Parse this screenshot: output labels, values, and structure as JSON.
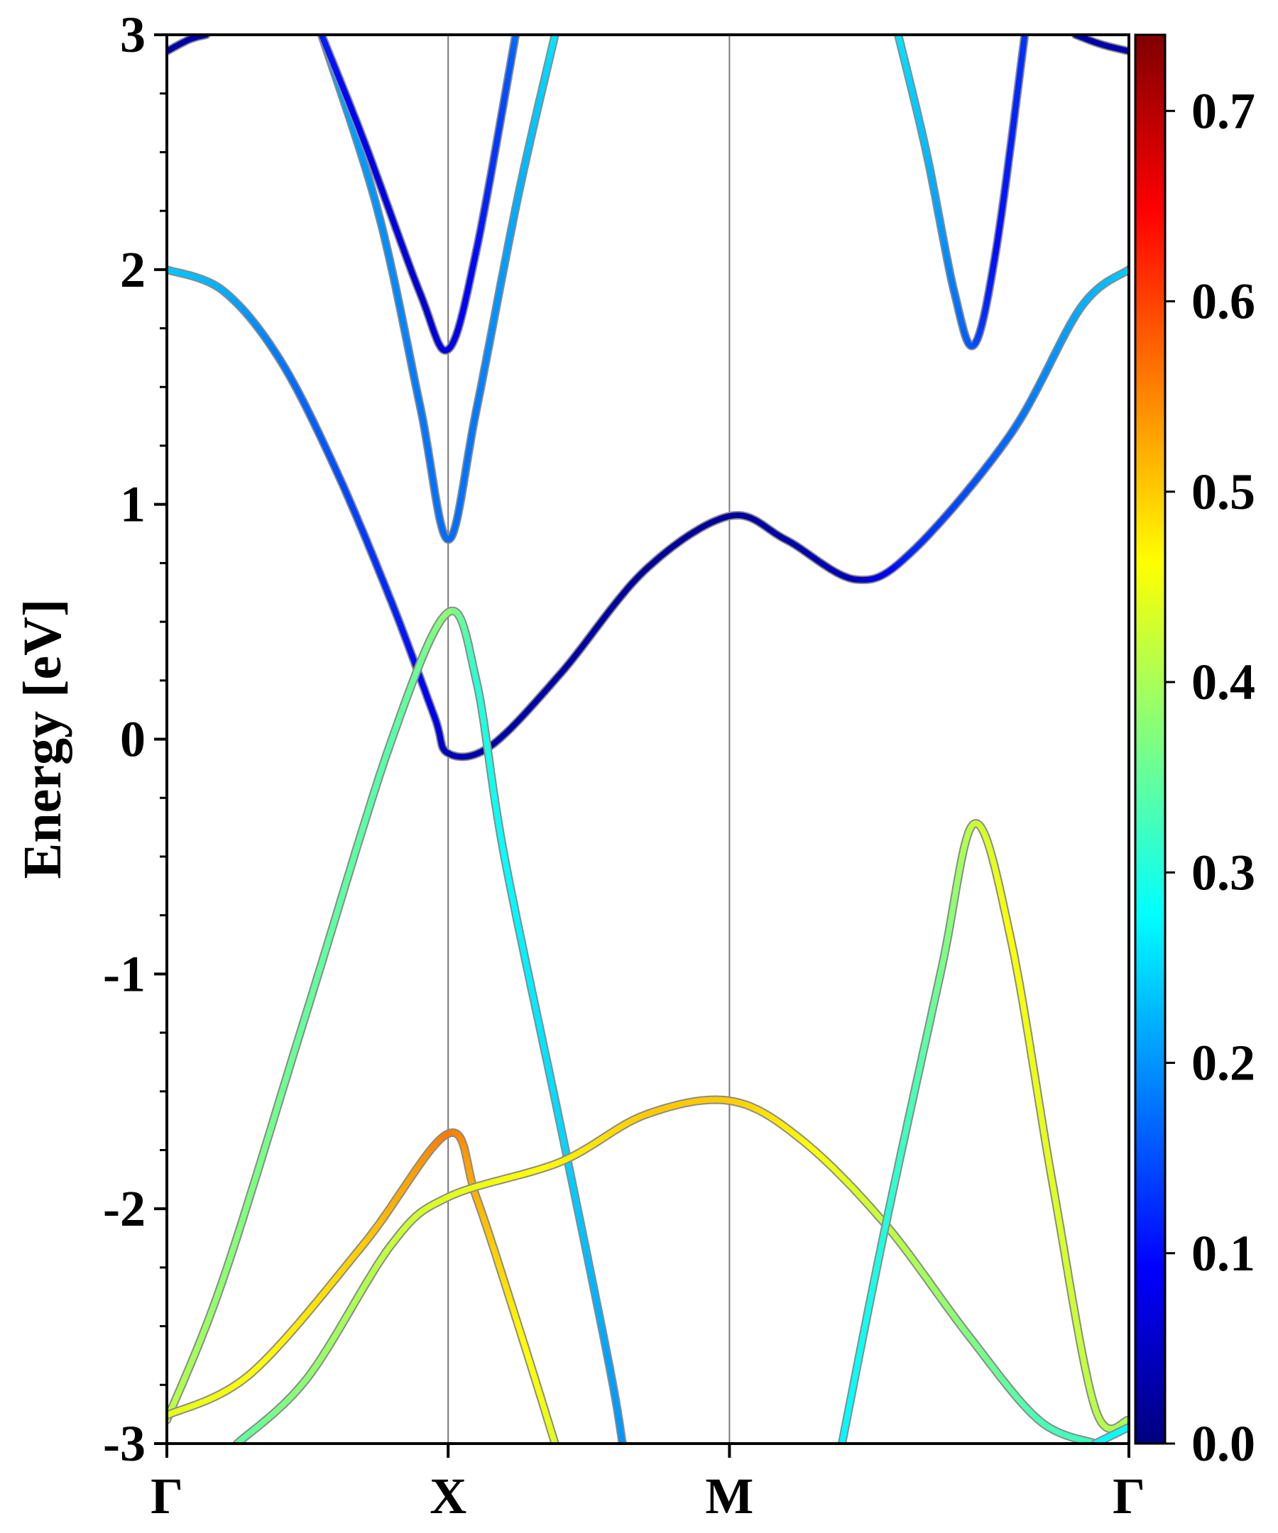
{
  "chart_data": {
    "type": "line",
    "title": "",
    "xlabel": "",
    "ylabel": "Energy [eV]",
    "ylim": [
      -3,
      3
    ],
    "yticks": [
      "3",
      "2",
      "1",
      "0",
      "-1",
      "-2",
      "-3"
    ],
    "xticks": [
      "Γ",
      "X",
      "M",
      "Γ"
    ],
    "colorbar": {
      "range": [
        0.0,
        0.74
      ],
      "ticks": [
        "0.7",
        "0.6",
        "0.5",
        "0.4",
        "0.3",
        "0.2",
        "0.1",
        "0.0"
      ],
      "colormap": "jet"
    },
    "high_symmetry_positions": [
      0,
      1,
      2,
      3.42
    ],
    "series": [
      {
        "points": [
          [
            0,
            2.0
          ],
          [
            0.2,
            1.91
          ],
          [
            0.4,
            1.62
          ],
          [
            0.6,
            1.15
          ],
          [
            0.8,
            0.58
          ],
          [
            0.95,
            0.1
          ],
          [
            1.0,
            -0.06
          ],
          [
            1.15,
            -0.03
          ],
          [
            1.4,
            0.28
          ],
          [
            1.7,
            0.72
          ],
          [
            2.0,
            0.95
          ],
          [
            2.2,
            0.85
          ],
          [
            2.45,
            0.68
          ],
          [
            2.65,
            0.8
          ],
          [
            3.0,
            1.3
          ],
          [
            3.25,
            1.84
          ],
          [
            3.42,
            2.0
          ]
        ],
        "weights": [
          0.24,
          0.22,
          0.18,
          0.15,
          0.12,
          0.08,
          0.04,
          0.03,
          0.03,
          0.02,
          0.02,
          0.03,
          0.04,
          0.12,
          0.17,
          0.22,
          0.24
        ]
      },
      {
        "points": [
          [
            0.55,
            3.0
          ],
          [
            0.75,
            2.25
          ],
          [
            0.9,
            1.42
          ],
          [
            1.0,
            0.85
          ],
          [
            1.1,
            1.4
          ],
          [
            1.25,
            2.32
          ],
          [
            1.38,
            3.0
          ]
        ],
        "weights": [
          0.22,
          0.2,
          0.18,
          0.17,
          0.18,
          0.22,
          0.26
        ]
      },
      {
        "points": [
          [
            0.55,
            3.0
          ],
          [
            0.7,
            2.55
          ],
          [
            0.9,
            1.9
          ],
          [
            1.0,
            1.66
          ],
          [
            1.1,
            2.08
          ],
          [
            1.24,
            3.0
          ]
        ],
        "weights": [
          0.12,
          0.08,
          0.06,
          0.07,
          0.1,
          0.17
        ]
      },
      {
        "points": [
          [
            2.6,
            3.0
          ],
          [
            2.7,
            2.5
          ],
          [
            2.8,
            1.9
          ],
          [
            2.87,
            1.68
          ],
          [
            2.95,
            2.1
          ],
          [
            3.05,
            3.0
          ]
        ],
        "weights": [
          0.26,
          0.23,
          0.18,
          0.15,
          0.1,
          0.13
        ]
      },
      {
        "points": [
          [
            0,
            -2.9
          ],
          [
            0.2,
            -2.3
          ],
          [
            0.5,
            -1.15
          ],
          [
            0.8,
            0.0
          ],
          [
            1.0,
            0.54
          ],
          [
            1.1,
            0.25
          ],
          [
            1.2,
            -0.5
          ],
          [
            1.4,
            -1.65
          ],
          [
            1.57,
            -2.65
          ],
          [
            1.62,
            -3.0
          ]
        ],
        "weights": [
          0.42,
          0.38,
          0.35,
          0.34,
          0.38,
          0.31,
          0.28,
          0.25,
          0.21,
          0.2
        ]
      },
      {
        "points": [
          [
            0,
            -2.88
          ],
          [
            0.3,
            -2.7
          ],
          [
            0.7,
            -2.15
          ],
          [
            1.0,
            -1.68
          ],
          [
            1.1,
            -1.95
          ],
          [
            1.25,
            -2.5
          ],
          [
            1.38,
            -3.0
          ]
        ],
        "weights": [
          0.44,
          0.46,
          0.5,
          0.56,
          0.52,
          0.47,
          0.44
        ]
      },
      {
        "points": [
          [
            0.25,
            -3.0
          ],
          [
            0.5,
            -2.72
          ],
          [
            0.8,
            -2.15
          ],
          [
            1.0,
            -1.95
          ],
          [
            1.4,
            -1.8
          ],
          [
            1.7,
            -1.6
          ],
          [
            2.0,
            -1.54
          ],
          [
            2.25,
            -1.7
          ],
          [
            2.55,
            -2.06
          ],
          [
            2.85,
            -2.54
          ],
          [
            3.1,
            -2.9
          ],
          [
            3.3,
            -3.0
          ]
        ],
        "weights": [
          0.34,
          0.38,
          0.42,
          0.44,
          0.47,
          0.5,
          0.5,
          0.47,
          0.42,
          0.37,
          0.33,
          0.32
        ]
      },
      {
        "points": [
          [
            2.4,
            -3.0
          ],
          [
            2.55,
            -2.1
          ],
          [
            2.75,
            -1.0
          ],
          [
            2.87,
            -0.36
          ],
          [
            3.0,
            -0.85
          ],
          [
            3.15,
            -1.9
          ],
          [
            3.3,
            -2.85
          ],
          [
            3.42,
            -2.9
          ]
        ],
        "weights": [
          0.27,
          0.3,
          0.36,
          0.42,
          0.46,
          0.44,
          0.41,
          0.4
        ]
      },
      {
        "points": [
          [
            3.3,
            -3.0
          ],
          [
            3.42,
            -2.93
          ]
        ],
        "weights": [
          0.28,
          0.28
        ]
      },
      {
        "points": [
          [
            0,
            2.93
          ],
          [
            0.08,
            2.98
          ],
          [
            0.14,
            3.0
          ]
        ],
        "weights": [
          0.03,
          0.03,
          0.03
        ]
      },
      {
        "points": [
          [
            3.23,
            3.0
          ],
          [
            3.32,
            2.96
          ],
          [
            3.42,
            2.93
          ]
        ],
        "weights": [
          0.03,
          0.03,
          0.03
        ]
      }
    ]
  }
}
